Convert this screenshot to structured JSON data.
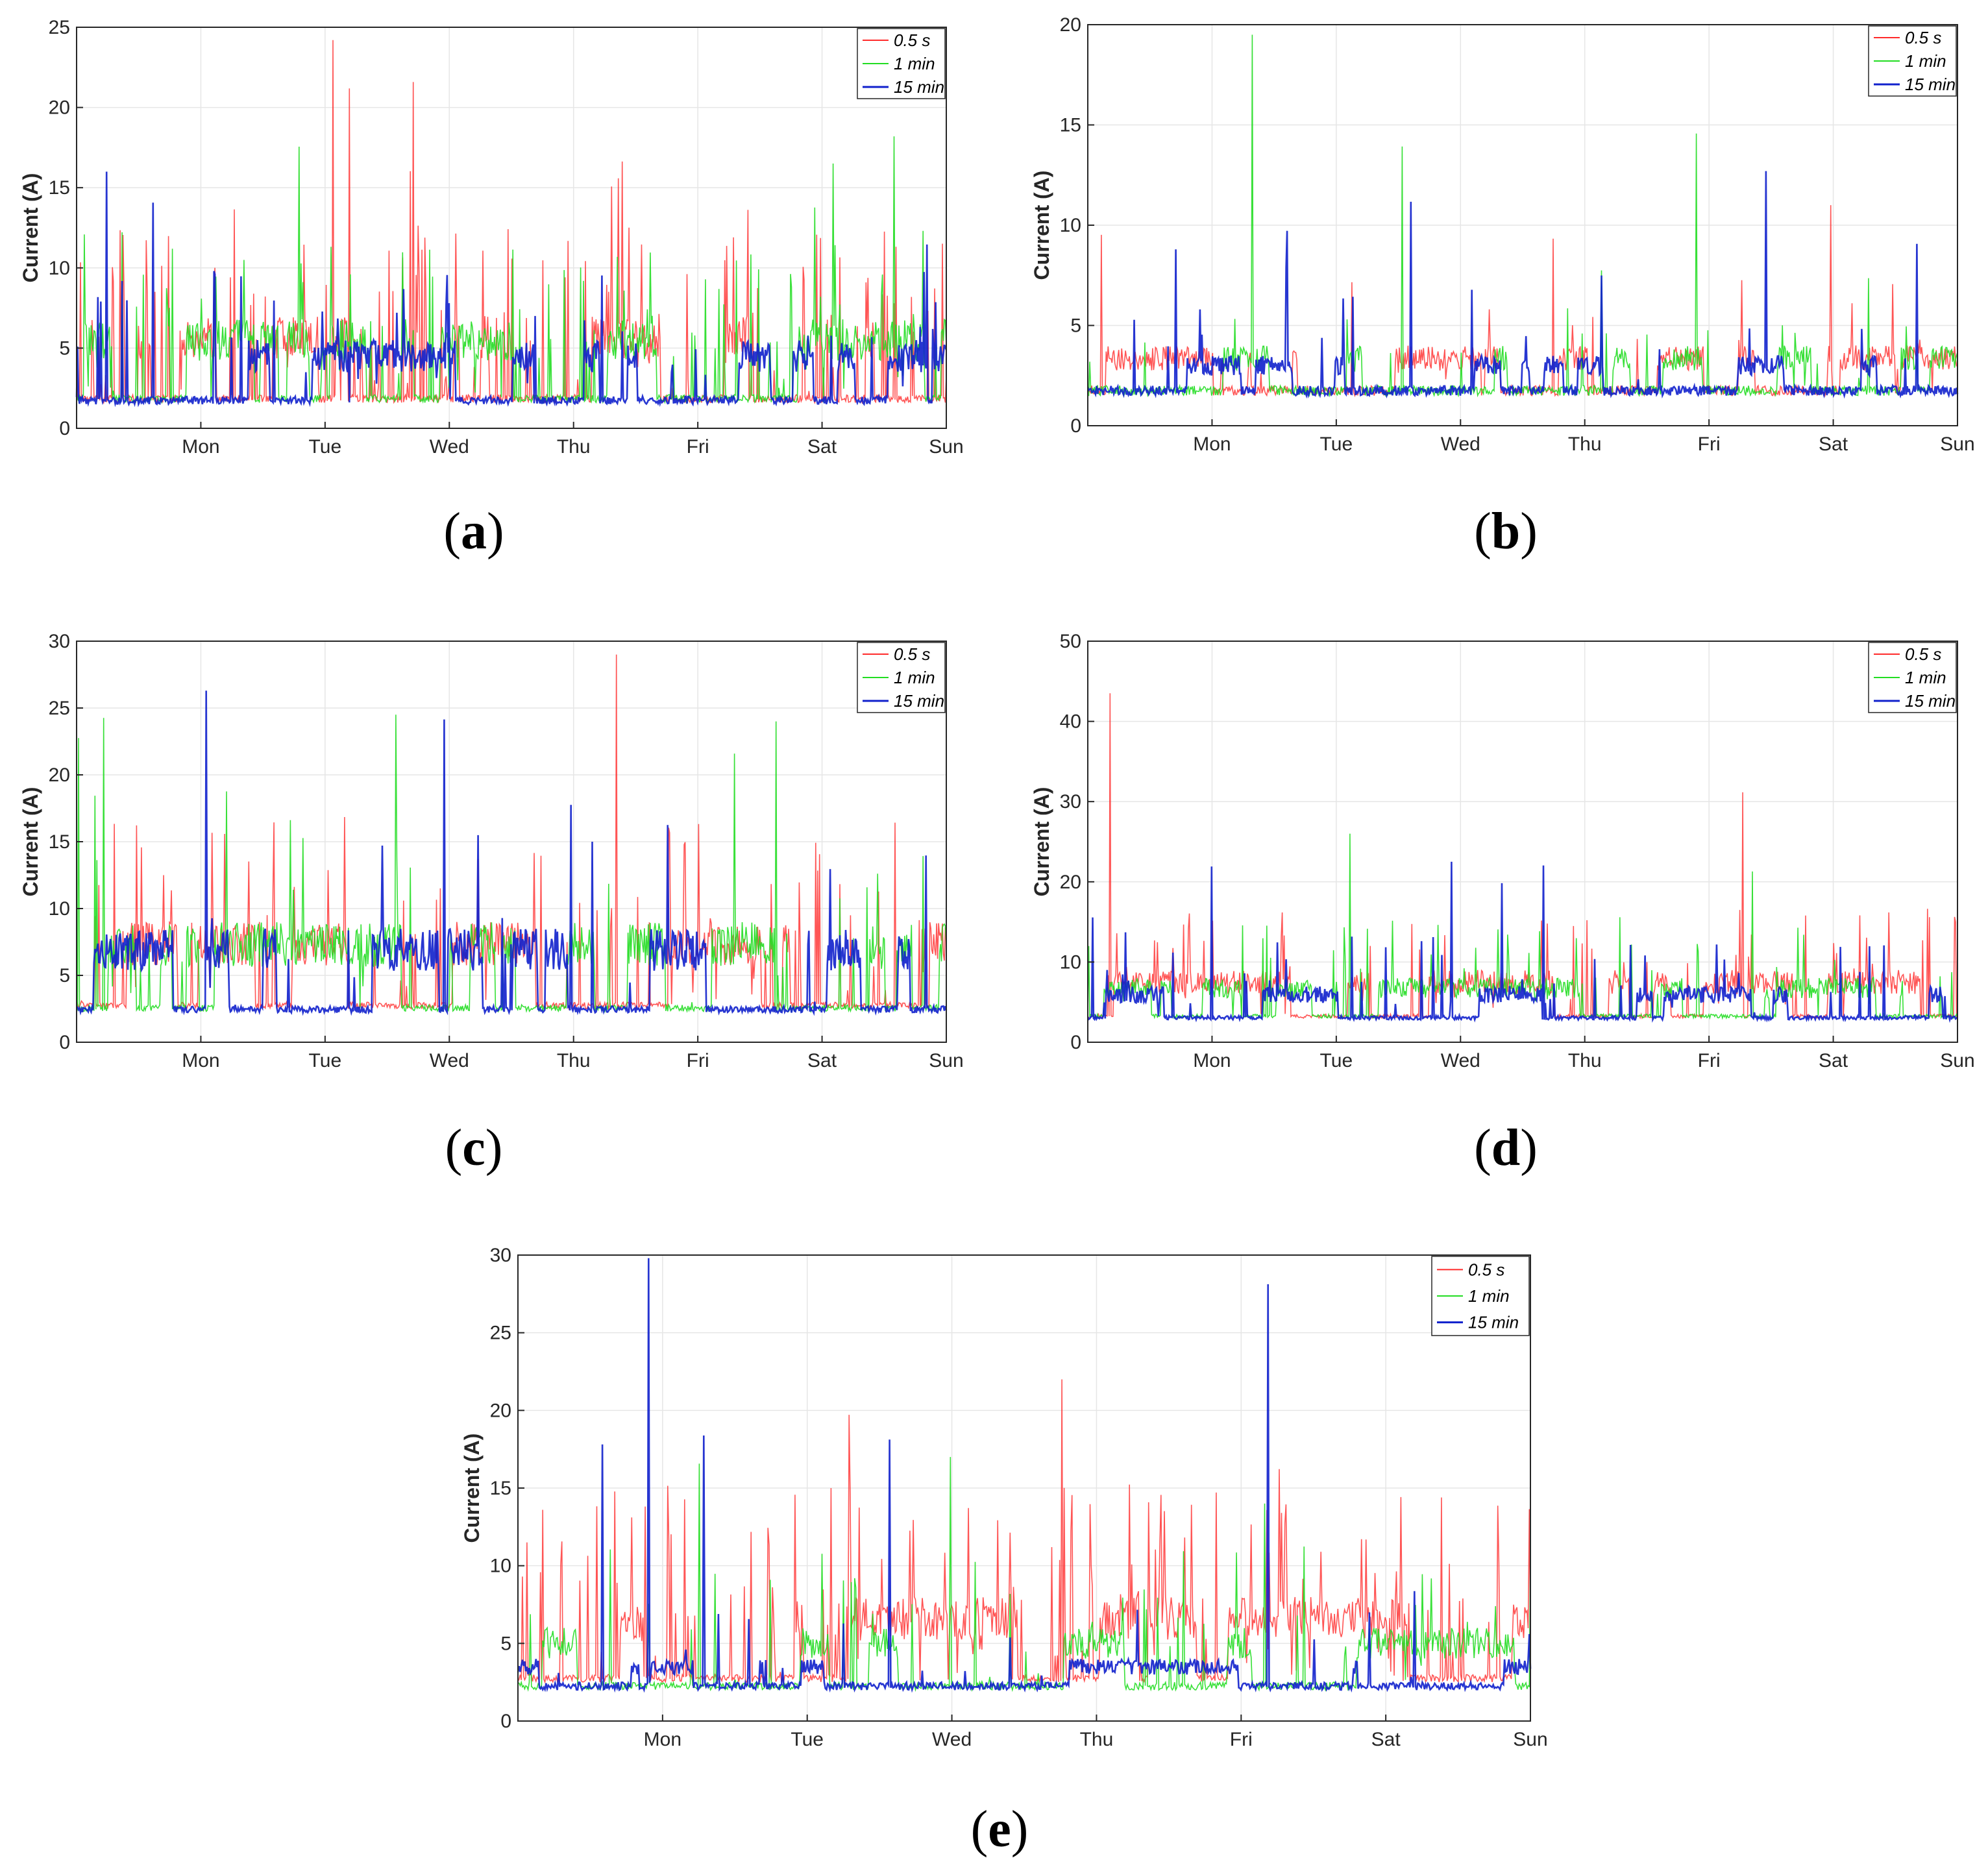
{
  "figure": {
    "panel_labels": [
      "(a)",
      "(b)",
      "(c)",
      "(d)",
      "(e)"
    ]
  },
  "colors": {
    "series_0_5s": "#ff2a2a",
    "series_1min": "#22dd22",
    "series_15min": "#1020cc",
    "grid": "#e6e6e6",
    "axis": "#262626"
  },
  "chart_data": [
    {
      "id": "a",
      "type": "line",
      "panel_label": "(a)",
      "ylabel": "Current (A)",
      "xlabel": "",
      "ylim": [
        0,
        25
      ],
      "yticks": [
        0,
        5,
        10,
        15,
        20,
        25
      ],
      "xlim": [
        0,
        7
      ],
      "xticks": [
        {
          "value": 1,
          "label": "Mon"
        },
        {
          "value": 2,
          "label": "Tue"
        },
        {
          "value": 3,
          "label": "Wed"
        },
        {
          "value": 4,
          "label": "Thu"
        },
        {
          "value": 5,
          "label": "Fri"
        },
        {
          "value": 6,
          "label": "Sat"
        },
        {
          "value": 7,
          "label": "Sun"
        }
      ],
      "grid": true,
      "legend": {
        "position": "top-right",
        "entries": [
          "0.5 s",
          "1 min",
          "15 min"
        ]
      },
      "series": [
        {
          "name": "0.5 s",
          "color_key": "series_0_5s",
          "base": 1.6,
          "high": 7.0,
          "spike_rate": 0.5,
          "peak_max": 24.2,
          "seed": 11
        },
        {
          "name": "1 min",
          "color_key": "series_1min",
          "base": 1.6,
          "high": 6.8,
          "spike_rate": 0.45,
          "peak_max": 18.2,
          "seed": 12
        },
        {
          "name": "15 min",
          "color_key": "series_15min",
          "base": 1.5,
          "high": 5.5,
          "spike_rate": 0.25,
          "peak_max": 16.0,
          "seed": 13
        }
      ]
    },
    {
      "id": "b",
      "type": "line",
      "panel_label": "(b)",
      "ylabel": "Current (A)",
      "xlabel": "",
      "ylim": [
        0,
        20
      ],
      "yticks": [
        0,
        5,
        10,
        15,
        20
      ],
      "xlim": [
        0,
        7
      ],
      "xticks": [
        {
          "value": 1,
          "label": "Mon"
        },
        {
          "value": 2,
          "label": "Tue"
        },
        {
          "value": 3,
          "label": "Wed"
        },
        {
          "value": 4,
          "label": "Thu"
        },
        {
          "value": 5,
          "label": "Fri"
        },
        {
          "value": 6,
          "label": "Sat"
        },
        {
          "value": 7,
          "label": "Sun"
        }
      ],
      "grid": true,
      "legend": {
        "position": "top-right",
        "entries": [
          "0.5 s",
          "1 min",
          "15 min"
        ]
      },
      "series": [
        {
          "name": "0.5 s",
          "color_key": "series_0_5s",
          "base": 1.5,
          "high": 4.0,
          "spike_rate": 0.12,
          "peak_max": 11.0,
          "seed": 21
        },
        {
          "name": "1 min",
          "color_key": "series_1min",
          "base": 1.5,
          "high": 4.0,
          "spike_rate": 0.08,
          "peak_max": 19.5,
          "seed": 22
        },
        {
          "name": "15 min",
          "color_key": "series_15min",
          "base": 1.5,
          "high": 3.5,
          "spike_rate": 0.06,
          "peak_max": 12.7,
          "seed": 23
        }
      ]
    },
    {
      "id": "c",
      "type": "line",
      "panel_label": "(c)",
      "ylabel": "Current (A)",
      "xlabel": "",
      "ylim": [
        0,
        30
      ],
      "yticks": [
        0,
        5,
        10,
        15,
        20,
        25,
        30
      ],
      "xlim": [
        0,
        7
      ],
      "xticks": [
        {
          "value": 1,
          "label": "Mon"
        },
        {
          "value": 2,
          "label": "Tue"
        },
        {
          "value": 3,
          "label": "Wed"
        },
        {
          "value": 4,
          "label": "Thu"
        },
        {
          "value": 5,
          "label": "Fri"
        },
        {
          "value": 6,
          "label": "Sat"
        },
        {
          "value": 7,
          "label": "Sun"
        }
      ],
      "grid": true,
      "legend": {
        "position": "top-right",
        "entries": [
          "0.5 s",
          "1 min",
          "15 min"
        ]
      },
      "series": [
        {
          "name": "0.5 s",
          "color_key": "series_0_5s",
          "base": 2.5,
          "high": 9.0,
          "spike_rate": 0.35,
          "peak_max": 29.0,
          "seed": 31
        },
        {
          "name": "1 min",
          "color_key": "series_1min",
          "base": 2.3,
          "high": 9.0,
          "spike_rate": 0.1,
          "peak_max": 24.5,
          "seed": 32
        },
        {
          "name": "15 min",
          "color_key": "series_15min",
          "base": 2.2,
          "high": 8.5,
          "spike_rate": 0.08,
          "peak_max": 26.3,
          "seed": 33
        }
      ]
    },
    {
      "id": "d",
      "type": "line",
      "panel_label": "(d)",
      "ylabel": "Current (A)",
      "xlabel": "",
      "ylim": [
        0,
        50
      ],
      "yticks": [
        0,
        10,
        20,
        30,
        40,
        50
      ],
      "xlim": [
        0,
        7
      ],
      "xticks": [
        {
          "value": 1,
          "label": "Mon"
        },
        {
          "value": 2,
          "label": "Tue"
        },
        {
          "value": 3,
          "label": "Wed"
        },
        {
          "value": 4,
          "label": "Thu"
        },
        {
          "value": 5,
          "label": "Fri"
        },
        {
          "value": 6,
          "label": "Sat"
        },
        {
          "value": 7,
          "label": "Sun"
        }
      ],
      "grid": true,
      "legend": {
        "position": "top-right",
        "entries": [
          "0.5 s",
          "1 min",
          "15 min"
        ]
      },
      "series": [
        {
          "name": "0.5 s",
          "color_key": "series_0_5s",
          "base": 3.0,
          "high": 9.0,
          "spike_rate": 0.3,
          "peak_max": 43.5,
          "seed": 41
        },
        {
          "name": "1 min",
          "color_key": "series_1min",
          "base": 3.0,
          "high": 8.0,
          "spike_rate": 0.25,
          "peak_max": 26.0,
          "seed": 42
        },
        {
          "name": "15 min",
          "color_key": "series_15min",
          "base": 2.8,
          "high": 7.0,
          "spike_rate": 0.2,
          "peak_max": 22.5,
          "seed": 43
        }
      ]
    },
    {
      "id": "e",
      "type": "line",
      "panel_label": "(e)",
      "ylabel": "Current (A)",
      "xlabel": "",
      "ylim": [
        0,
        30
      ],
      "yticks": [
        0,
        5,
        10,
        15,
        20,
        25,
        30
      ],
      "xlim": [
        0,
        7
      ],
      "xticks": [
        {
          "value": 1,
          "label": "Mon"
        },
        {
          "value": 2,
          "label": "Tue"
        },
        {
          "value": 3,
          "label": "Wed"
        },
        {
          "value": 4,
          "label": "Thu"
        },
        {
          "value": 5,
          "label": "Fri"
        },
        {
          "value": 6,
          "label": "Sat"
        },
        {
          "value": 7,
          "label": "Sun"
        }
      ],
      "grid": true,
      "legend": {
        "position": "top-right",
        "entries": [
          "0.5 s",
          "1 min",
          "15 min"
        ]
      },
      "series": [
        {
          "name": "0.5 s",
          "color_key": "series_0_5s",
          "base": 2.5,
          "high": 8.0,
          "spike_rate": 0.6,
          "peak_max": 22.0,
          "seed": 51
        },
        {
          "name": "1 min",
          "color_key": "series_1min",
          "base": 2.0,
          "high": 6.0,
          "spike_rate": 0.2,
          "peak_max": 17.0,
          "seed": 52
        },
        {
          "name": "15 min",
          "color_key": "series_15min",
          "base": 2.0,
          "high": 4.0,
          "spike_rate": 0.1,
          "peak_max": 29.8,
          "seed": 53
        }
      ]
    }
  ]
}
